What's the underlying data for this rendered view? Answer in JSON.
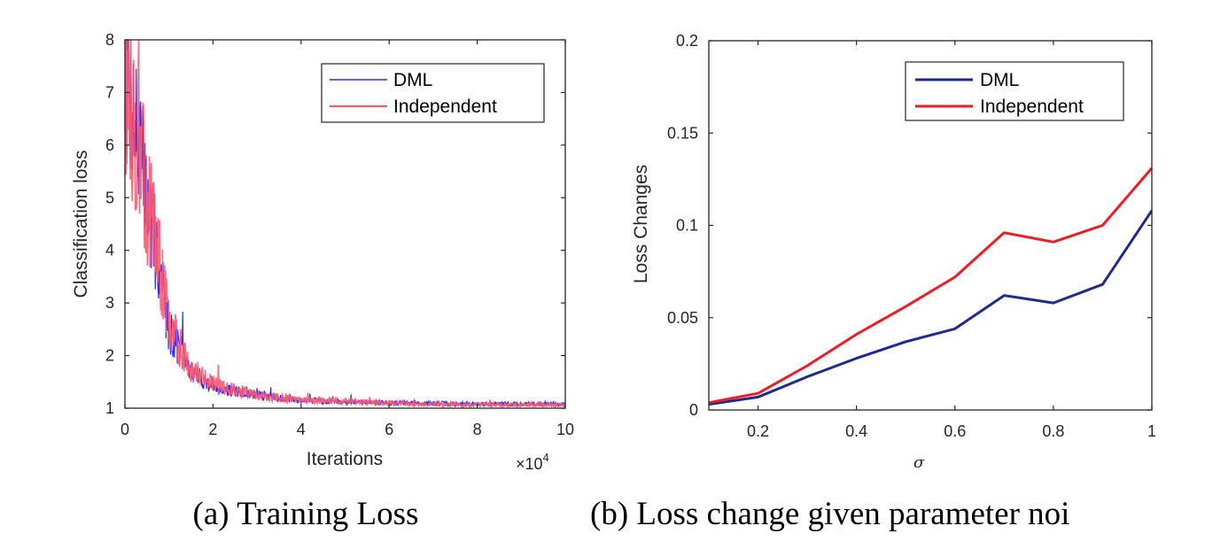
{
  "chart_data": [
    {
      "type": "line",
      "caption": "(a) Training Loss",
      "xlabel": "Iterations",
      "ylabel": "Classification loss",
      "x_multiplier_label": "×10",
      "x_multiplier_exponent": "4",
      "xlim": [
        0,
        10
      ],
      "ylim": [
        1,
        8
      ],
      "xticks": [
        "0",
        "2",
        "4",
        "6",
        "8",
        "10"
      ],
      "yticks": [
        "1",
        "2",
        "3",
        "4",
        "5",
        "6",
        "7",
        "8"
      ],
      "grid": false,
      "legend_position": "top-right",
      "series": [
        {
          "name": "DML",
          "color": "#2b2bff",
          "noise": 0.22,
          "seed": 7,
          "x": [
            0,
            0.2,
            0.5,
            0.8,
            1.0,
            1.5,
            2.0,
            3.0,
            4.0,
            6.0,
            8.0,
            10.0
          ],
          "y": [
            7.6,
            6.6,
            5.0,
            3.6,
            2.5,
            1.7,
            1.4,
            1.25,
            1.15,
            1.1,
            1.08,
            1.08
          ]
        },
        {
          "name": "Independent",
          "color": "#ff5a6e",
          "noise": 0.24,
          "seed": 13,
          "x": [
            0,
            0.2,
            0.5,
            0.8,
            1.0,
            1.5,
            2.0,
            3.0,
            4.0,
            6.0,
            8.0,
            10.0
          ],
          "y": [
            7.3,
            6.4,
            5.0,
            3.7,
            2.6,
            1.75,
            1.45,
            1.25,
            1.15,
            1.1,
            1.06,
            1.06
          ]
        }
      ]
    },
    {
      "type": "line",
      "caption": "(b) Loss change given parameter noi",
      "xlabel": "σ",
      "ylabel": "Loss Changes",
      "xlim": [
        0.1,
        1.0
      ],
      "ylim": [
        0,
        0.2
      ],
      "xticks": [
        "0.2",
        "0.4",
        "0.6",
        "0.8",
        "1"
      ],
      "yticks": [
        "0",
        "0.05",
        "0.1",
        "0.15",
        "0.2"
      ],
      "grid": false,
      "legend_position": "top-right",
      "series": [
        {
          "name": "DML",
          "color": "#1f2a8c",
          "x": [
            0.1,
            0.2,
            0.3,
            0.4,
            0.5,
            0.6,
            0.7,
            0.8,
            0.9,
            1.0
          ],
          "y": [
            0.003,
            0.007,
            0.018,
            0.028,
            0.037,
            0.044,
            0.062,
            0.058,
            0.068,
            0.108
          ]
        },
        {
          "name": "Independent",
          "color": "#ee1c25",
          "x": [
            0.1,
            0.2,
            0.3,
            0.4,
            0.5,
            0.6,
            0.7,
            0.8,
            0.9,
            1.0
          ],
          "y": [
            0.004,
            0.009,
            0.024,
            0.041,
            0.056,
            0.072,
            0.096,
            0.091,
            0.1,
            0.131
          ]
        }
      ]
    }
  ]
}
